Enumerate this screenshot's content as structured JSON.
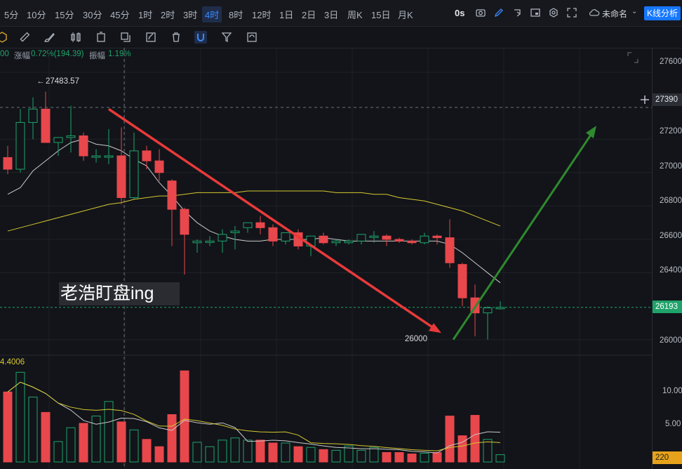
{
  "timeframes": [
    "5分",
    "10分",
    "15分",
    "30分",
    "45分",
    "1时",
    "2时",
    "3时",
    "4时",
    "8时",
    "12时",
    "1日",
    "2日",
    "3日",
    "周K",
    "15日",
    "月K"
  ],
  "active_timeframe": "4时",
  "countdown": "0s",
  "layout_name": "未命名",
  "analysis_button": "K线分析",
  "info": {
    "truncated_prefix": "00",
    "change_label": "涨幅",
    "change_value": "0.72%(194.39)",
    "amplitude_label": "振幅",
    "amplitude_value": "1.19%"
  },
  "price_axis": [
    "27600",
    "27390",
    "27200",
    "27000",
    "26800",
    "26600",
    "26400",
    "26193",
    "26000"
  ],
  "volume_axis": [
    "10.00",
    "5.00",
    "220"
  ],
  "volume_ma_value": "4.4006",
  "annotations": {
    "high_marker": "27483.57",
    "low_marker": "26000",
    "overlay_text": "老浩盯盘ing"
  },
  "crosshair_price": "27390",
  "current_price": "26193",
  "colors": {
    "up": "#1fa36b",
    "down": "#e8474c",
    "ma_fast": "#c9c9c9",
    "ma_slow": "#d6c832",
    "accent": "#1677ff",
    "green_arrow": "#2f8a2f",
    "red_arrow": "#e83a3a"
  },
  "chart_data": {
    "type": "candlestick",
    "interval": "4h",
    "ohlc": [
      [
        27090,
        27160,
        26990,
        27020
      ],
      [
        27020,
        27380,
        27000,
        27300
      ],
      [
        27300,
        27450,
        27200,
        27380
      ],
      [
        27380,
        27484,
        27180,
        27180
      ],
      [
        27180,
        27200,
        27100,
        27210
      ],
      [
        27210,
        27400,
        27120,
        27220
      ],
      [
        27220,
        27240,
        27070,
        27100
      ],
      [
        27100,
        27140,
        27060,
        27100
      ],
      [
        27100,
        27260,
        27050,
        27100
      ],
      [
        27100,
        27270,
        26810,
        26850
      ],
      [
        26850,
        27240,
        26840,
        27130
      ],
      [
        27130,
        27160,
        27020,
        27070
      ],
      [
        27070,
        27140,
        26950,
        27000
      ],
      [
        26950,
        26960,
        26560,
        26780
      ],
      [
        26780,
        26790,
        26390,
        26630
      ],
      [
        26580,
        26600,
        26520,
        26590
      ],
      [
        26590,
        26620,
        26560,
        26590
      ],
      [
        26590,
        26660,
        26520,
        26630
      ],
      [
        26640,
        26680,
        26540,
        26650
      ],
      [
        26670,
        26700,
        26640,
        26700
      ],
      [
        26700,
        26740,
        26630,
        26670
      ],
      [
        26670,
        26690,
        26560,
        26590
      ],
      [
        26590,
        26640,
        26570,
        26640
      ],
      [
        26640,
        26660,
        26540,
        26560
      ],
      [
        26560,
        26610,
        26500,
        26620
      ],
      [
        26620,
        26640,
        26570,
        26580
      ],
      [
        26580,
        26600,
        26560,
        26590
      ],
      [
        26580,
        26600,
        26570,
        26590
      ],
      [
        26590,
        26620,
        26570,
        26630
      ],
      [
        26620,
        26650,
        26580,
        26620
      ],
      [
        26620,
        26630,
        26560,
        26600
      ],
      [
        26600,
        26610,
        26580,
        26590
      ],
      [
        26590,
        26600,
        26570,
        26580
      ],
      [
        26580,
        26640,
        26570,
        26620
      ],
      [
        26620,
        26630,
        26570,
        26610
      ],
      [
        26610,
        26720,
        26430,
        26460
      ],
      [
        26450,
        26460,
        26200,
        26250
      ],
      [
        26250,
        26330,
        26020,
        26160
      ],
      [
        26160,
        26200,
        26000,
        26190
      ],
      [
        26190,
        26230,
        26180,
        26193
      ]
    ],
    "volume": [
      9.6,
      12.3,
      8.9,
      6.8,
      2.8,
      4.7,
      5.3,
      6.3,
      8.3,
      5.5,
      4.4,
      3.1,
      2.1,
      6.5,
      12.5,
      2.7,
      2.1,
      3.0,
      3.3,
      3.0,
      3.0,
      2.6,
      2.6,
      2.1,
      2.0,
      1.7,
      1.6,
      2.2,
      1.6,
      2.0,
      1.3,
      1.3,
      1.1,
      1.2,
      1.3,
      6.3,
      3.6,
      6.4,
      3.1,
      1.0
    ],
    "ma_fast": [
      26870,
      26910,
      27010,
      27070,
      27130,
      27180,
      27200,
      27170,
      27160,
      27130,
      27080,
      27040,
      26940,
      26860,
      26770,
      26700,
      26650,
      26620,
      26600,
      26590,
      26590,
      26600,
      26600,
      26600,
      26600,
      26610,
      26600,
      26590,
      26590,
      26590,
      26590,
      26590,
      26590,
      26590,
      26590,
      26570,
      26520,
      26460,
      26400,
      26340
    ],
    "ma_slow": [
      26650,
      26670,
      26690,
      26710,
      26730,
      26750,
      26770,
      26790,
      26810,
      26820,
      26840,
      26850,
      26860,
      26860,
      26870,
      26880,
      26880,
      26880,
      26880,
      26890,
      26890,
      26890,
      26890,
      26890,
      26890,
      26890,
      26880,
      26880,
      26880,
      26870,
      26870,
      26850,
      26840,
      26830,
      26810,
      26790,
      26770,
      26740,
      26710,
      26680
    ],
    "ylim": [
      25940,
      27680
    ]
  }
}
